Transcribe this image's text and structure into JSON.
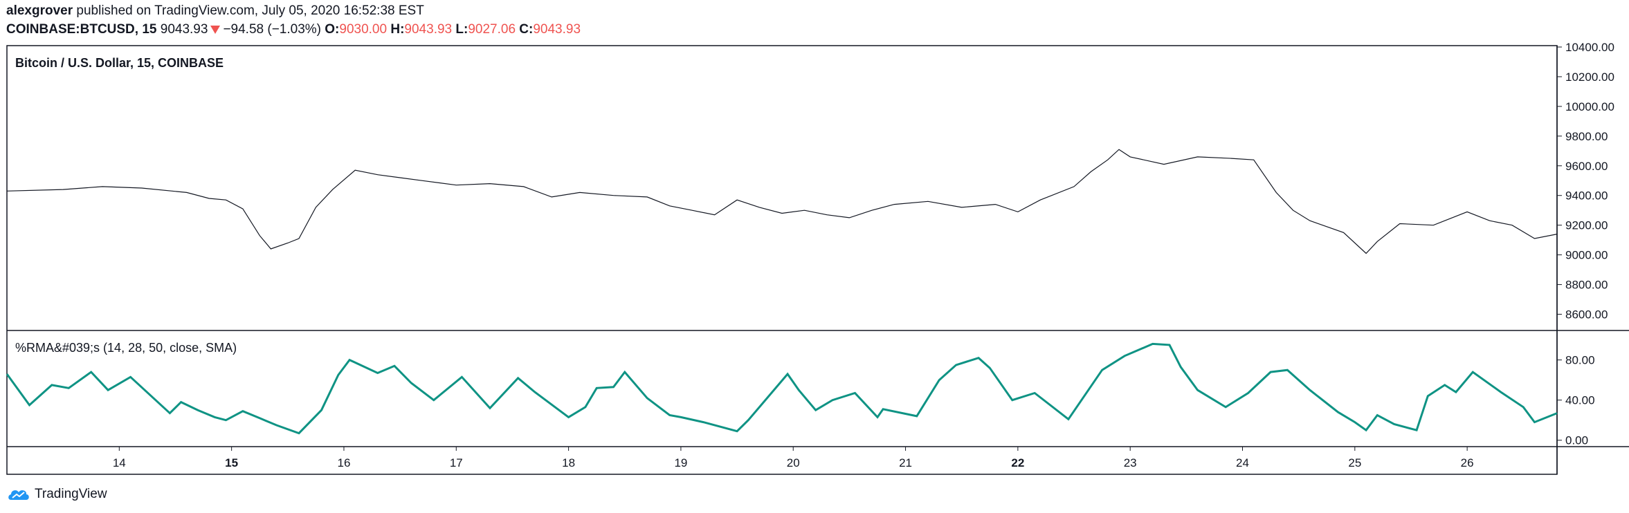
{
  "header": {
    "author": "alexgrover",
    "published": "published on TradingView.com, July 05, 2020 16:52:38 EST",
    "symbol": "COINBASE:BTCUSD, 15",
    "last": "9043.93",
    "change": "−94.58 (−1.03%)",
    "open_label": "O:",
    "open": "9030.00",
    "high_label": "H:",
    "high": "9043.93",
    "low_label": "L:",
    "low": "9027.06",
    "close_label": "C:",
    "close": "9043.93"
  },
  "colors": {
    "indicator": "#0f9384",
    "price": "#131722",
    "negative": "#ef5350",
    "axis_text": "#131722"
  },
  "footer": {
    "brand": "TradingView",
    "logo_icon": "tradingview-cloud-icon"
  },
  "chart_data": [
    {
      "type": "line",
      "title": "Bitcoin / U.S. Dollar, 15, COINBASE",
      "ylim": [
        8500,
        10400
      ],
      "yticks": [
        "10400.00",
        "10200.00",
        "10000.00",
        "9800.00",
        "9600.00",
        "9400.00",
        "9200.00",
        "9000.00",
        "8800.00",
        "8600.00"
      ],
      "x": [
        13.0,
        13.5,
        13.85,
        14.2,
        14.6,
        14.8,
        14.95,
        15.1,
        15.25,
        15.35,
        15.5,
        15.6,
        15.75,
        15.9,
        16.1,
        16.3,
        16.5,
        16.7,
        17.0,
        17.3,
        17.6,
        17.85,
        18.1,
        18.4,
        18.7,
        18.9,
        19.1,
        19.3,
        19.5,
        19.7,
        19.9,
        20.1,
        20.3,
        20.5,
        20.7,
        20.9,
        21.2,
        21.5,
        21.8,
        22.0,
        22.2,
        22.5,
        22.65,
        22.8,
        22.9,
        23.0,
        23.3,
        23.6,
        23.9,
        24.1,
        24.3,
        24.45,
        24.6,
        24.9,
        25.1,
        25.2,
        25.4,
        25.7,
        26.0,
        26.2,
        26.4,
        26.6,
        26.8
      ],
      "series": [
        {
          "values": [
            9430,
            9440,
            9460,
            9450,
            9420,
            9380,
            9370,
            9310,
            9130,
            9040,
            9080,
            9110,
            9320,
            9440,
            9570,
            9540,
            9520,
            9500,
            9470,
            9480,
            9460,
            9390,
            9420,
            9400,
            9390,
            9330,
            9300,
            9270,
            9370,
            9320,
            9280,
            9300,
            9270,
            9250,
            9300,
            9340,
            9360,
            9320,
            9340,
            9290,
            9370,
            9460,
            9560,
            9640,
            9710,
            9660,
            9610,
            9660,
            9650,
            9640,
            9420,
            9300,
            9230,
            9150,
            9010,
            9090,
            9210,
            9200,
            9290,
            9230,
            9200,
            9110,
            9140
          ]
        }
      ]
    },
    {
      "type": "line",
      "title": "%RMA&#039;s (14, 28, 50, close, SMA)",
      "ylim": [
        -5,
        108
      ],
      "yticks": [
        "80.00",
        "40.00",
        "0.00"
      ],
      "x": [
        13.0,
        13.2,
        13.4,
        13.55,
        13.75,
        13.9,
        14.1,
        14.45,
        14.55,
        14.7,
        14.85,
        14.95,
        15.1,
        15.25,
        15.4,
        15.6,
        15.8,
        15.95,
        16.05,
        16.3,
        16.45,
        16.6,
        16.8,
        17.05,
        17.3,
        17.55,
        17.7,
        18.0,
        18.15,
        18.25,
        18.4,
        18.5,
        18.7,
        18.9,
        19.0,
        19.2,
        19.5,
        19.6,
        19.95,
        20.05,
        20.2,
        20.35,
        20.55,
        20.75,
        20.8,
        21.1,
        21.3,
        21.45,
        21.65,
        21.75,
        21.95,
        22.15,
        22.45,
        22.75,
        22.95,
        23.2,
        23.35,
        23.45,
        23.6,
        23.85,
        24.05,
        24.25,
        24.4,
        24.6,
        24.85,
        25.0,
        25.1,
        25.2,
        25.35,
        25.55,
        25.65,
        25.8,
        25.9,
        26.05,
        26.3,
        26.5,
        26.6,
        26.8
      ],
      "xticks": [
        "14",
        "15",
        "16",
        "17",
        "18",
        "19",
        "20",
        "21",
        "22",
        "23",
        "24",
        "25",
        "26"
      ],
      "xticks_bold": [
        "15",
        "22"
      ],
      "series": [
        {
          "name": "%RMA's",
          "values": [
            66,
            35,
            55,
            52,
            68,
            50,
            63,
            27,
            38,
            30,
            23,
            20,
            29,
            22,
            15,
            7,
            30,
            65,
            80,
            67,
            74,
            57,
            40,
            63,
            32,
            62,
            48,
            23,
            33,
            52,
            53,
            68,
            42,
            25,
            23,
            18,
            9,
            20,
            66,
            50,
            30,
            40,
            47,
            23,
            31,
            24,
            60,
            75,
            82,
            72,
            40,
            47,
            21,
            70,
            84,
            96,
            95,
            73,
            50,
            33,
            47,
            68,
            70,
            50,
            28,
            18,
            10,
            25,
            16,
            10,
            44,
            55,
            48,
            68,
            48,
            33,
            18,
            27
          ]
        }
      ]
    }
  ]
}
